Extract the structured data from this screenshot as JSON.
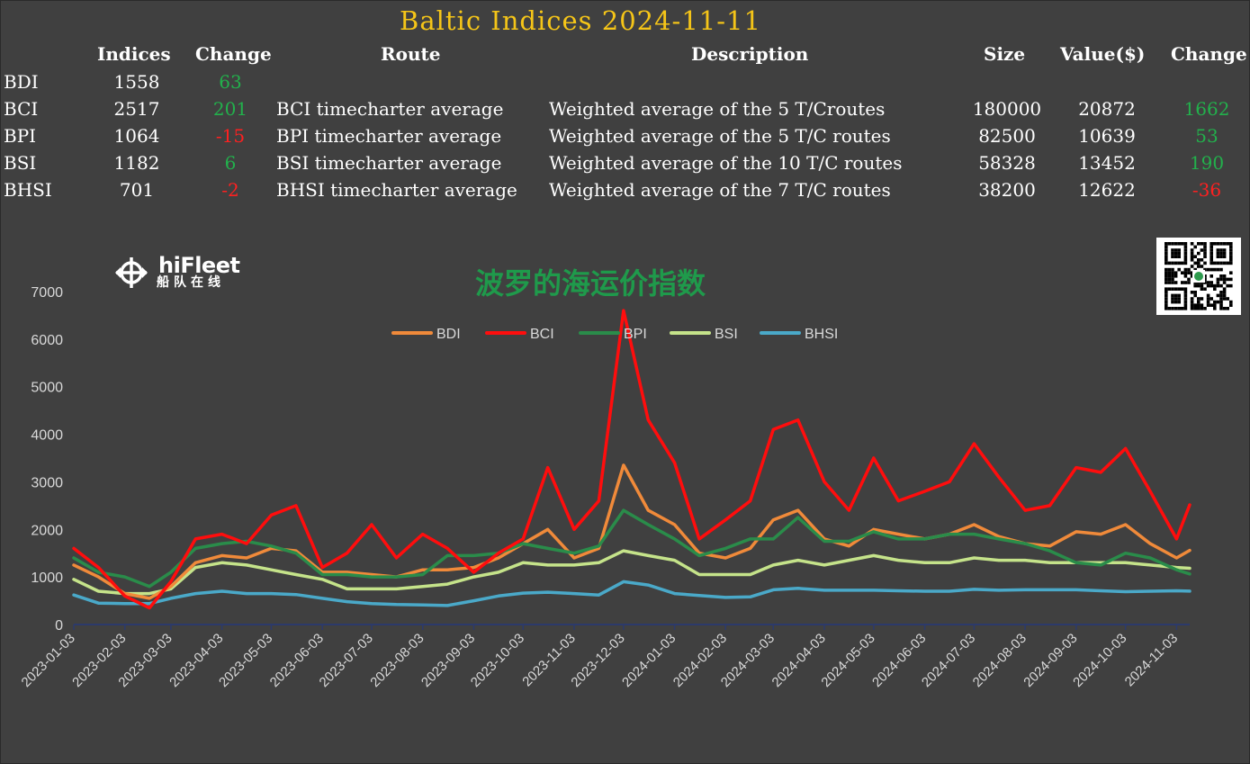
{
  "header": {
    "title": "Baltic Indices 2024-11-11"
  },
  "table": {
    "columns": [
      "Indices",
      "Change",
      "Route",
      "Description",
      "Size",
      "Value($)",
      "Change"
    ],
    "rows": [
      {
        "name": "BDI",
        "index": "1558",
        "change": "63",
        "change_sign": "pos",
        "route": "",
        "description": "",
        "size": "",
        "value": "",
        "value_change": "",
        "value_change_sign": ""
      },
      {
        "name": "BCI",
        "index": "2517",
        "change": "201",
        "change_sign": "pos",
        "route": "BCI timecharter average",
        "description": "Weighted average of the 5 T/Croutes",
        "size": "180000",
        "value": "20872",
        "value_change": "1662",
        "value_change_sign": "pos"
      },
      {
        "name": "BPI",
        "index": "1064",
        "change": "-15",
        "change_sign": "neg",
        "route": "BPI timecharter average",
        "description": "Weighted average of the 5 T/C routes",
        "size": "82500",
        "value": "10639",
        "value_change": "53",
        "value_change_sign": "pos"
      },
      {
        "name": "BSI",
        "index": "1182",
        "change": "6",
        "change_sign": "pos",
        "route": "BSI timecharter average",
        "description": "Weighted average of the 10 T/C routes",
        "size": "58328",
        "value": "13452",
        "value_change": "190",
        "value_change_sign": "pos"
      },
      {
        "name": "BHSI",
        "index": "701",
        "change": "-2",
        "change_sign": "neg",
        "route": "BHSI timecharter average",
        "description": "Weighted average of the 7 T/C routes",
        "size": "38200",
        "value": "12622",
        "value_change": "-36",
        "value_change_sign": "neg"
      }
    ]
  },
  "brand": {
    "name": "hiFleet",
    "sub": "船队在线",
    "icon": "ship-wheel-logo-icon",
    "qr_icon": "qr-code-icon"
  },
  "colors": {
    "title": "#f5c518",
    "positive": "#22b14c",
    "negative": "#ff2020",
    "chart_title": "#1f9a4b",
    "background": "#404040"
  },
  "chart_data": {
    "type": "line",
    "title": "波罗的海运价指数",
    "xlabel": "",
    "ylabel": "",
    "ylim": [
      0,
      7000
    ],
    "yticks": [
      0,
      1000,
      2000,
      3000,
      4000,
      5000,
      6000,
      7000
    ],
    "xticks": [
      "2023-01-03",
      "2023-02-03",
      "2023-03-03",
      "2023-04-03",
      "2023-05-03",
      "2023-06-03",
      "2023-07-03",
      "2023-08-03",
      "2023-09-03",
      "2023-10-03",
      "2023-11-03",
      "2023-12-03",
      "2024-01-03",
      "2024-02-03",
      "2024-03-03",
      "2024-04-03",
      "2024-05-03",
      "2024-06-03",
      "2024-07-03",
      "2024-08-03",
      "2024-09-03",
      "2024-10-03",
      "2024-11-03"
    ],
    "grid": false,
    "legend": "top-center",
    "x": [
      "2023-01-03",
      "2023-01-18",
      "2023-02-03",
      "2023-02-18",
      "2023-03-03",
      "2023-03-18",
      "2023-04-03",
      "2023-04-18",
      "2023-05-03",
      "2023-05-18",
      "2023-06-03",
      "2023-06-18",
      "2023-07-03",
      "2023-07-18",
      "2023-08-03",
      "2023-08-18",
      "2023-09-03",
      "2023-09-18",
      "2023-10-03",
      "2023-10-18",
      "2023-11-03",
      "2023-11-18",
      "2023-12-03",
      "2023-12-18",
      "2024-01-03",
      "2024-01-18",
      "2024-02-03",
      "2024-02-18",
      "2024-03-03",
      "2024-03-18",
      "2024-04-03",
      "2024-04-18",
      "2024-05-03",
      "2024-05-18",
      "2024-06-03",
      "2024-06-18",
      "2024-07-03",
      "2024-07-18",
      "2024-08-03",
      "2024-08-18",
      "2024-09-03",
      "2024-09-18",
      "2024-10-03",
      "2024-10-18",
      "2024-11-03",
      "2024-11-11"
    ],
    "series": [
      {
        "name": "BDI",
        "color": "#f08a3a",
        "values": [
          1250,
          1000,
          650,
          550,
          800,
          1300,
          1450,
          1400,
          1600,
          1550,
          1100,
          1100,
          1050,
          1000,
          1150,
          1150,
          1200,
          1400,
          1700,
          2000,
          1400,
          1600,
          3350,
          2400,
          2100,
          1500,
          1400,
          1600,
          2200,
          2400,
          1800,
          1650,
          2000,
          1900,
          1800,
          1900,
          2100,
          1850,
          1700,
          1650,
          1950,
          1900,
          2100,
          1700,
          1400,
          1558
        ]
      },
      {
        "name": "BCI",
        "color": "#ff0d0d",
        "values": [
          1600,
          1200,
          600,
          350,
          900,
          1800,
          1900,
          1700,
          2300,
          2500,
          1200,
          1500,
          2100,
          1400,
          1900,
          1600,
          1100,
          1500,
          1800,
          3300,
          2000,
          2600,
          6600,
          4300,
          3400,
          1800,
          2200,
          2600,
          4100,
          4300,
          3000,
          2400,
          3500,
          2600,
          2800,
          3000,
          3800,
          3100,
          2400,
          2500,
          3300,
          3200,
          3700,
          2800,
          1800,
          2517
        ]
      },
      {
        "name": "BPI",
        "color": "#2a8c4a",
        "values": [
          1400,
          1100,
          1000,
          800,
          1100,
          1600,
          1700,
          1750,
          1650,
          1500,
          1050,
          1050,
          1000,
          1000,
          1050,
          1450,
          1450,
          1500,
          1700,
          1600,
          1500,
          1650,
          2400,
          2100,
          1800,
          1450,
          1600,
          1800,
          1800,
          2250,
          1750,
          1750,
          1950,
          1800,
          1800,
          1900,
          1900,
          1800,
          1700,
          1550,
          1300,
          1250,
          1500,
          1400,
          1150,
          1064
        ]
      },
      {
        "name": "BSI",
        "color": "#c5e38a",
        "values": [
          950,
          700,
          650,
          650,
          750,
          1200,
          1300,
          1250,
          1150,
          1050,
          950,
          750,
          750,
          750,
          800,
          850,
          1000,
          1100,
          1300,
          1250,
          1250,
          1300,
          1550,
          1450,
          1350,
          1050,
          1050,
          1050,
          1250,
          1350,
          1250,
          1350,
          1450,
          1350,
          1300,
          1300,
          1400,
          1350,
          1350,
          1300,
          1300,
          1300,
          1300,
          1250,
          1200,
          1182
        ]
      },
      {
        "name": "BHSI",
        "color": "#4aa9c9",
        "values": [
          620,
          450,
          440,
          440,
          550,
          650,
          700,
          650,
          650,
          630,
          550,
          480,
          440,
          420,
          410,
          400,
          500,
          600,
          660,
          680,
          650,
          620,
          900,
          830,
          650,
          610,
          570,
          580,
          730,
          760,
          720,
          720,
          720,
          710,
          700,
          700,
          740,
          720,
          730,
          730,
          730,
          710,
          690,
          700,
          710,
          701
        ]
      }
    ]
  }
}
